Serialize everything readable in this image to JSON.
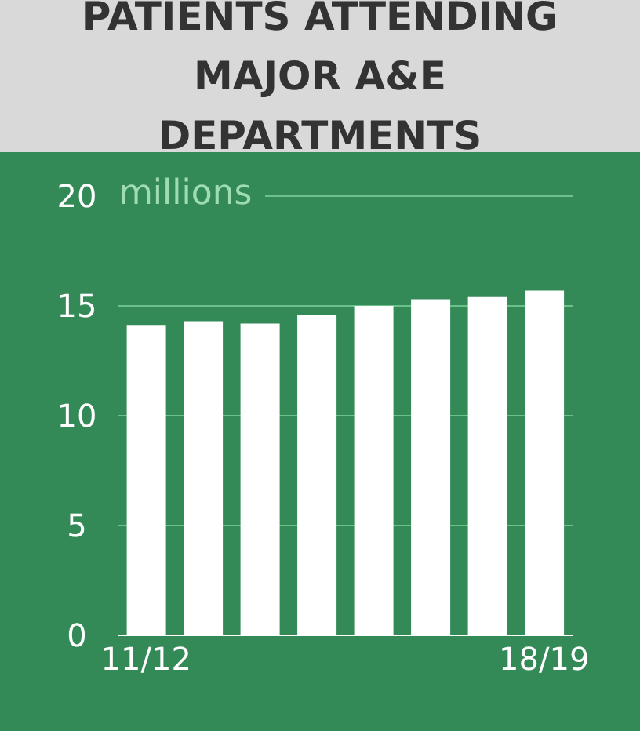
{
  "chart_data": {
    "type": "bar",
    "title": "PATIENTS ATTENDING MAJOR A&E DEPARTMENTS",
    "ylabel": "millions",
    "categories": [
      "11/12",
      null,
      null,
      null,
      null,
      null,
      null,
      "18/19"
    ],
    "values": [
      14.1,
      14.3,
      14.2,
      14.6,
      15.0,
      15.3,
      15.4,
      15.7
    ],
    "color": "#ffffff",
    "ylim": [
      0,
      20
    ],
    "yticks": [
      0,
      5,
      10,
      15,
      20
    ],
    "grid": "y"
  }
}
